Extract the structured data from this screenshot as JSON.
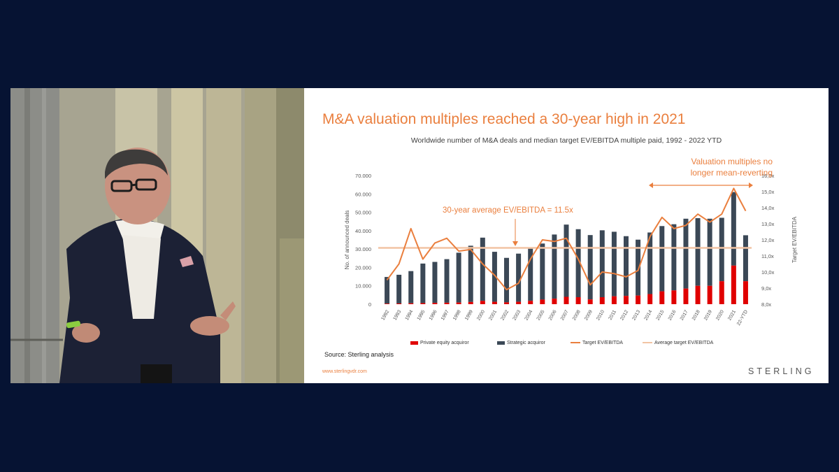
{
  "slide": {
    "title": "M&A valuation multiples reached a 30-year high in 2021",
    "subtitle": "Worldwide number of M&A deals and median target EV/EBITDA multiple paid, 1992 - 2022 YTD",
    "source": "Source: Sterling analysis",
    "url": "www.sterlingvdr.com",
    "brand": "STERLING",
    "annotation_average": "30-year average EV/EBITDA = 11.5x",
    "annotation_valuation_line1": "Valuation multiples no",
    "annotation_valuation_line2": "longer mean-reverting"
  },
  "colors": {
    "accent": "#ea7f3e",
    "strategic": "#3b4856",
    "private_equity": "#e00000",
    "average_line": "#f2c4a4",
    "background": "#061333"
  },
  "chart_data": {
    "type": "bar",
    "title": "Worldwide number of M&A deals and median target EV/EBITDA multiple paid, 1992 - 2022 YTD",
    "categories": [
      "1992",
      "1993",
      "1994",
      "1995",
      "1996",
      "1997",
      "1998",
      "1999",
      "2000",
      "2001",
      "2002",
      "2003",
      "2004",
      "2005",
      "2006",
      "2007",
      "2008",
      "2009",
      "2010",
      "2011",
      "2012",
      "2013",
      "2014",
      "2015",
      "2016",
      "2017",
      "2018",
      "2019",
      "2020",
      "2021",
      "22-YTD"
    ],
    "series": [
      {
        "name": "Private equity acquiror",
        "type": "bar",
        "axis": "left",
        "values": [
          300,
          400,
          500,
          600,
          700,
          800,
          900,
          1200,
          1800,
          1300,
          1000,
          1300,
          1800,
          2500,
          3000,
          4000,
          3800,
          2600,
          3800,
          4300,
          4500,
          4700,
          5500,
          7000,
          7500,
          8500,
          10000,
          10000,
          12500,
          21000,
          12500
        ]
      },
      {
        "name": "Strategic acquiror",
        "type": "bar",
        "axis": "left",
        "values": [
          14500,
          15600,
          17500,
          21500,
          22300,
          23700,
          27100,
          30600,
          34400,
          27200,
          24200,
          26200,
          28400,
          30500,
          34900,
          39300,
          37000,
          35000,
          36400,
          35100,
          32500,
          30400,
          33500,
          35500,
          36000,
          38000,
          36800,
          36500,
          34500,
          40000,
          25000
        ]
      },
      {
        "name": "Target EV/EBITDA",
        "type": "line",
        "axis": "right",
        "values": [
          9.5,
          10.5,
          12.7,
          10.8,
          11.8,
          12.1,
          11.3,
          11.4,
          10.5,
          9.8,
          8.9,
          9.3,
          10.8,
          12.0,
          11.9,
          12.1,
          10.8,
          9.2,
          10.0,
          9.9,
          9.7,
          10.1,
          12.2,
          13.4,
          12.7,
          12.9,
          13.6,
          13.1,
          13.6,
          15.2,
          13.8
        ]
      },
      {
        "name": "Average target EV/EBITDA",
        "type": "line",
        "axis": "right",
        "values": [
          11.5,
          11.5,
          11.5,
          11.5,
          11.5,
          11.5,
          11.5,
          11.5,
          11.5,
          11.5,
          11.5,
          11.5,
          11.5,
          11.5,
          11.5,
          11.5,
          11.5,
          11.5,
          11.5,
          11.5,
          11.5,
          11.5,
          11.5,
          11.5,
          11.5,
          11.5,
          11.5,
          11.5,
          11.5,
          11.5,
          11.5
        ]
      }
    ],
    "ylabel": "No. of announced deals",
    "y2label": "Target EV/EBITDA",
    "ylim": [
      0,
      70000
    ],
    "y2lim": [
      8.0,
      16.0
    ],
    "yticks": [
      "0",
      "10.000",
      "20.000",
      "30.000",
      "40.000",
      "50.000",
      "60.000",
      "70.000"
    ],
    "y2ticks": [
      "8,0x",
      "9,0x",
      "10,0x",
      "11,0x",
      "12,0x",
      "13,0x",
      "14,0x",
      "15,0x",
      "16,0x"
    ],
    "legend": [
      "Private equity acquiror",
      "Strategic acquiror",
      "Target EV/EBITDA",
      "Average target EV/EBITDA"
    ],
    "legend_position": "bottom",
    "grid": false
  }
}
